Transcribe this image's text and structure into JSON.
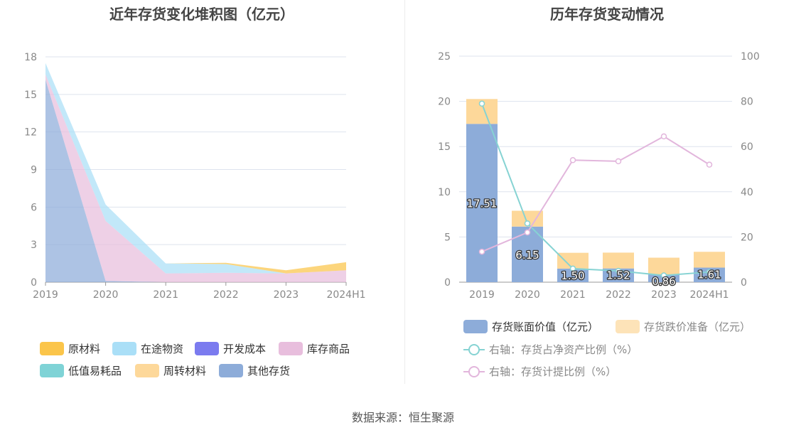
{
  "left_title": "近年存货变化堆积图（亿元）",
  "right_title": "历年存货变动情况",
  "source": "数据来源：恒生聚源",
  "chart_data": [
    {
      "type": "area",
      "title": "近年存货变化堆积图（亿元）",
      "categories": [
        "2019",
        "2020",
        "2021",
        "2022",
        "2023",
        "2024H1"
      ],
      "ylim": [
        0,
        18
      ],
      "yticks": [
        0,
        3,
        6,
        9,
        12,
        15,
        18
      ],
      "stacked": true,
      "series": [
        {
          "name": "其他存货",
          "color": "#8dacd9",
          "values": [
            16.2,
            0.1,
            0.0,
            0.0,
            0.0,
            0.0
          ]
        },
        {
          "name": "周转材料",
          "color": "#fdd89a",
          "values": [
            0.0,
            0.0,
            0.0,
            0.0,
            0.0,
            0.0
          ]
        },
        {
          "name": "低值易耗品",
          "color": "#7fd3d6",
          "values": [
            0.0,
            0.0,
            0.0,
            0.0,
            0.0,
            0.0
          ]
        },
        {
          "name": "库存商品",
          "color": "#e8bedd",
          "values": [
            0.4,
            4.8,
            0.7,
            0.75,
            0.7,
            0.95
          ]
        },
        {
          "name": "开发成本",
          "color": "#7b7bef",
          "values": [
            0.0,
            0.0,
            0.0,
            0.0,
            0.0,
            0.0
          ]
        },
        {
          "name": "在途物资",
          "color": "#aadff7",
          "values": [
            0.9,
            1.3,
            0.8,
            0.7,
            0.0,
            0.0
          ]
        },
        {
          "name": "原材料",
          "color": "#fbc54a",
          "values": [
            0.0,
            0.0,
            0.0,
            0.1,
            0.25,
            0.65
          ]
        }
      ],
      "legend": [
        {
          "name": "原材料",
          "color": "#fbc54a"
        },
        {
          "name": "在途物资",
          "color": "#aadff7"
        },
        {
          "name": "开发成本",
          "color": "#7b7bef"
        },
        {
          "name": "库存商品",
          "color": "#e8bedd"
        },
        {
          "name": "低值易耗品",
          "color": "#7fd3d6"
        },
        {
          "name": "周转材料",
          "color": "#fdd89a"
        },
        {
          "name": "其他存货",
          "color": "#8dacd9"
        }
      ]
    },
    {
      "type": "bar",
      "title": "历年存货变动情况",
      "categories": [
        "2019",
        "2020",
        "2021",
        "2022",
        "2023",
        "2024H1"
      ],
      "ylim": [
        0,
        25
      ],
      "yticks": [
        0,
        5,
        10,
        15,
        20,
        25
      ],
      "y2lim": [
        0,
        100
      ],
      "y2ticks": [
        0,
        20,
        40,
        60,
        80,
        100
      ],
      "stacked": true,
      "bar_series": [
        {
          "name": "存货账面价值（亿元）",
          "color": "#8dacd9",
          "values": [
            17.51,
            6.15,
            1.5,
            1.52,
            0.86,
            1.61
          ],
          "labels": [
            "17.51",
            "6.15",
            "1.50",
            "1.52",
            "0.86",
            "1.61"
          ]
        },
        {
          "name": "存货跌价准备（亿元）",
          "color": "#fdd89a",
          "values": [
            2.75,
            1.75,
            1.75,
            1.75,
            1.85,
            1.75
          ]
        }
      ],
      "line_series": [
        {
          "name": "右轴：存货占净资产比例（%）",
          "color": "#86d3d3",
          "axis": "right",
          "values": [
            79.0,
            26.0,
            6.0,
            5.0,
            3.0,
            4.5
          ]
        },
        {
          "name": "右轴：存货计提比例（%）",
          "color": "#e2b6dc",
          "axis": "right",
          "values": [
            13.5,
            22.0,
            54.0,
            53.5,
            64.5,
            52.0
          ]
        }
      ],
      "legend": [
        {
          "name": "存货账面价值（亿元）",
          "color": "#8dacd9",
          "kind": "bar"
        },
        {
          "name": "存货跌价准备（亿元）",
          "color": "#fde3b8",
          "kind": "bar"
        },
        {
          "name": "右轴：存货占净资产比例（%）",
          "color": "#86d3d3",
          "kind": "line"
        },
        {
          "name": "右轴：存货计提比例（%）",
          "color": "#e2b6dc",
          "kind": "line"
        }
      ]
    }
  ]
}
